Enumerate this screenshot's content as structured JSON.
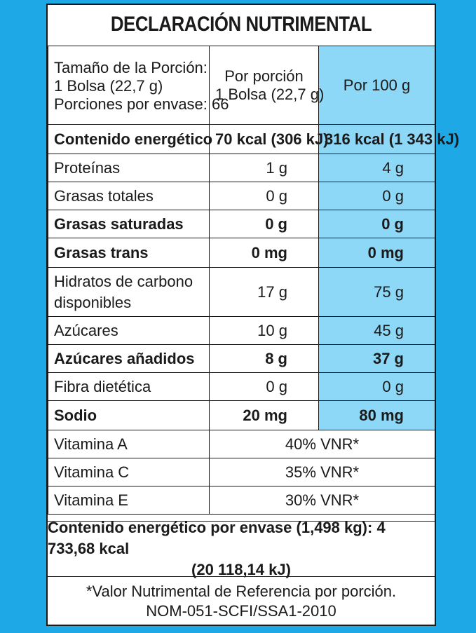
{
  "title": "DECLARACIÓN NUTRIMENTAL",
  "header": {
    "serving_lines": [
      "Tamaño de la Porción:",
      "1 Bolsa (22,7 g)",
      "Porciones por envase: 66"
    ],
    "per_portion_lines": [
      "Por porción",
      "1 Bolsa (22,7 g)"
    ],
    "per_100": "Por 100 g"
  },
  "rows": [
    {
      "label": "Contenido energético",
      "portion": "70 kcal (306 kJ)",
      "per100": "316 kcal (1 343 kJ)",
      "bold": true
    },
    {
      "label": "Proteínas",
      "portion": "1 g",
      "per100": "4 g",
      "bold": false
    },
    {
      "label": "Grasas totales",
      "portion": "0 g",
      "per100": "0 g",
      "bold": false
    },
    {
      "label": "Grasas saturadas",
      "portion": "0 g",
      "per100": "0 g",
      "bold": true
    },
    {
      "label": "Grasas trans",
      "portion": "0 mg",
      "per100": "0 mg",
      "bold": true
    },
    {
      "label_lines": [
        "Hidratos de carbono",
        "disponibles"
      ],
      "portion": "17 g",
      "per100": "75 g",
      "bold": false
    },
    {
      "label": "Azúcares",
      "portion": "10 g",
      "per100": "45 g",
      "bold": false
    },
    {
      "label": "Azúcares añadidos",
      "portion": "8 g",
      "per100": "37 g",
      "bold": true
    },
    {
      "label": "Fibra dietética",
      "portion": "0 g",
      "per100": "0 g",
      "bold": false
    },
    {
      "label": "Sodio",
      "portion": "20 mg",
      "per100": "80 mg",
      "bold": true
    }
  ],
  "vitamins": [
    {
      "label": "Vitamina A",
      "value": "40% VNR*"
    },
    {
      "label": "Vitamina C",
      "value": "35% VNR*"
    },
    {
      "label": "Vitamina E",
      "value": "30% VNR*"
    }
  ],
  "energy_per_package": [
    "Contenido energético por envase (1,498 kg): 4 733,68 kcal",
    "(20 118,14 kJ)"
  ],
  "footnote": [
    "*Valor Nutrimental de Referencia por porción.",
    "NOM-051-SCFI/SSA1-2010"
  ],
  "colors": {
    "background": "#1fa8e6",
    "per100_column": "#8dd7f7"
  }
}
